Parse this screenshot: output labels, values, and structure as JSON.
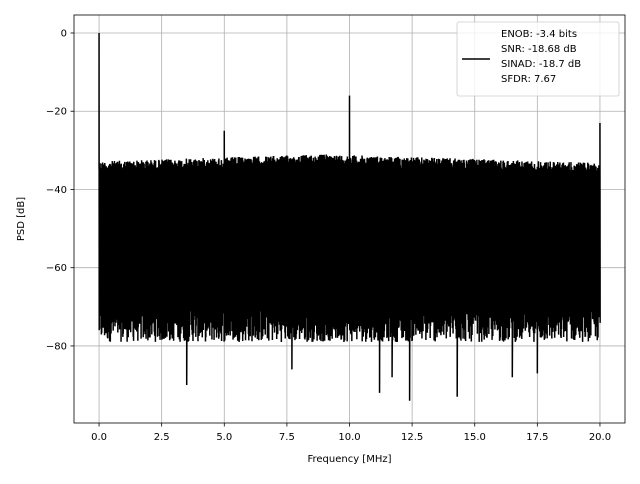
{
  "chart_data": {
    "type": "line",
    "title": "",
    "xlabel": "Frequency [MHz]",
    "ylabel": "PSD [dB]",
    "xlim": [
      -1,
      21
    ],
    "ylim": [
      -99.7,
      4.6
    ],
    "xticks": [
      0.0,
      2.5,
      5.0,
      7.5,
      10.0,
      12.5,
      15.0,
      17.5,
      20.0
    ],
    "xtick_labels": [
      "0.0",
      "2.5",
      "5.0",
      "7.5",
      "10.0",
      "12.5",
      "15.0",
      "17.5",
      "20.0"
    ],
    "yticks": [
      0,
      -20,
      -40,
      -60,
      -80
    ],
    "ytick_labels": [
      "0",
      "−20",
      "−40",
      "−60",
      "−80"
    ],
    "grid": true,
    "legend_placement": "upper-right",
    "series": [
      {
        "name": "ENOB: -3.4 bits\nSNR: -18.68 dB\nSINAD: -18.7 dB\nSFDR: 7.67",
        "color": "#000000",
        "x_range": [
          0,
          20
        ],
        "noise_upper_envelope_db": -29,
        "noise_typical_lower_db": -72,
        "peaks": [
          {
            "x": 0.0,
            "y": 0
          },
          {
            "x": 5.0,
            "y": -25
          },
          {
            "x": 10.0,
            "y": -16
          },
          {
            "x": 20.0,
            "y": -23
          }
        ],
        "dips": [
          {
            "x": 3.5,
            "y": -90
          },
          {
            "x": 11.2,
            "y": -92
          },
          {
            "x": 11.7,
            "y": -88
          },
          {
            "x": 12.4,
            "y": -94
          },
          {
            "x": 14.3,
            "y": -93
          },
          {
            "x": 7.7,
            "y": -86
          },
          {
            "x": 16.5,
            "y": -88
          },
          {
            "x": 17.5,
            "y": -87
          }
        ]
      }
    ],
    "legend_lines": [
      "ENOB: -3.4 bits",
      "SNR: -18.68 dB",
      "SINAD: -18.7 dB",
      "SFDR: 7.67"
    ]
  }
}
